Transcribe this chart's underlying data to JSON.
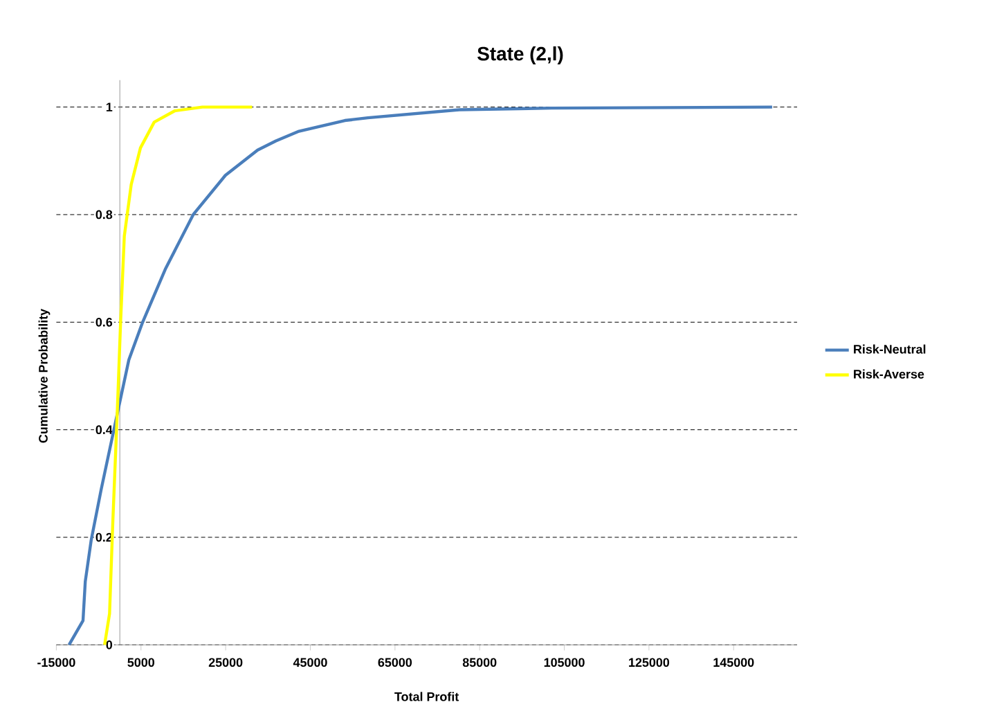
{
  "chart_data": {
    "type": "line",
    "title": "State (2,l)",
    "xlabel": "Total Profit",
    "ylabel": "Cumulative Probability",
    "series": [
      {
        "name": "Risk-Neutral",
        "color": "#4a7ebb",
        "x": [
          -12000,
          -8700,
          -8160,
          -6760,
          -4380,
          -1130,
          2130,
          5390,
          10830,
          17340,
          24930,
          32550,
          36880,
          42320,
          53170,
          58600,
          80200,
          102000,
          154100
        ],
        "values": [
          0,
          0.045,
          0.118,
          0.195,
          0.29,
          0.41,
          0.53,
          0.6,
          0.7,
          0.8,
          0.873,
          0.92,
          0.937,
          0.955,
          0.975,
          0.98,
          0.995,
          0.998,
          1
        ]
      },
      {
        "name": "Risk-Averse",
        "color": "#ffff00",
        "x": [
          -3600,
          -2430,
          -1650,
          -570,
          180,
          1060,
          2690,
          4870,
          8120,
          13000,
          19500,
          31250
        ],
        "values": [
          0,
          0.058,
          0.23,
          0.44,
          0.6,
          0.76,
          0.856,
          0.924,
          0.972,
          0.993,
          1,
          1
        ]
      }
    ],
    "xlim": [
      -15000,
      160000
    ],
    "ylim": [
      0,
      1.05
    ],
    "xticks": [
      -15000,
      5000,
      25000,
      45000,
      65000,
      85000,
      105000,
      125000,
      145000
    ],
    "yticks": [
      0,
      0.2,
      0.4,
      0.6,
      0.8,
      1
    ],
    "grid": "y",
    "legend": "right",
    "marker": "none",
    "line_style": "solid"
  }
}
